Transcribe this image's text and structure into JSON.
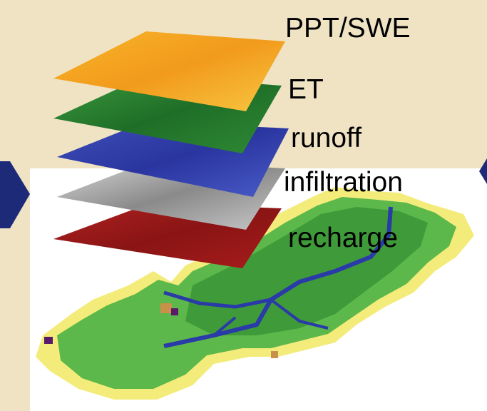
{
  "layers": [
    {
      "label": "PPT/SWE"
    },
    {
      "label": "ET"
    },
    {
      "label": "runoff"
    },
    {
      "label": "infiltration"
    },
    {
      "label": "recharge"
    }
  ]
}
